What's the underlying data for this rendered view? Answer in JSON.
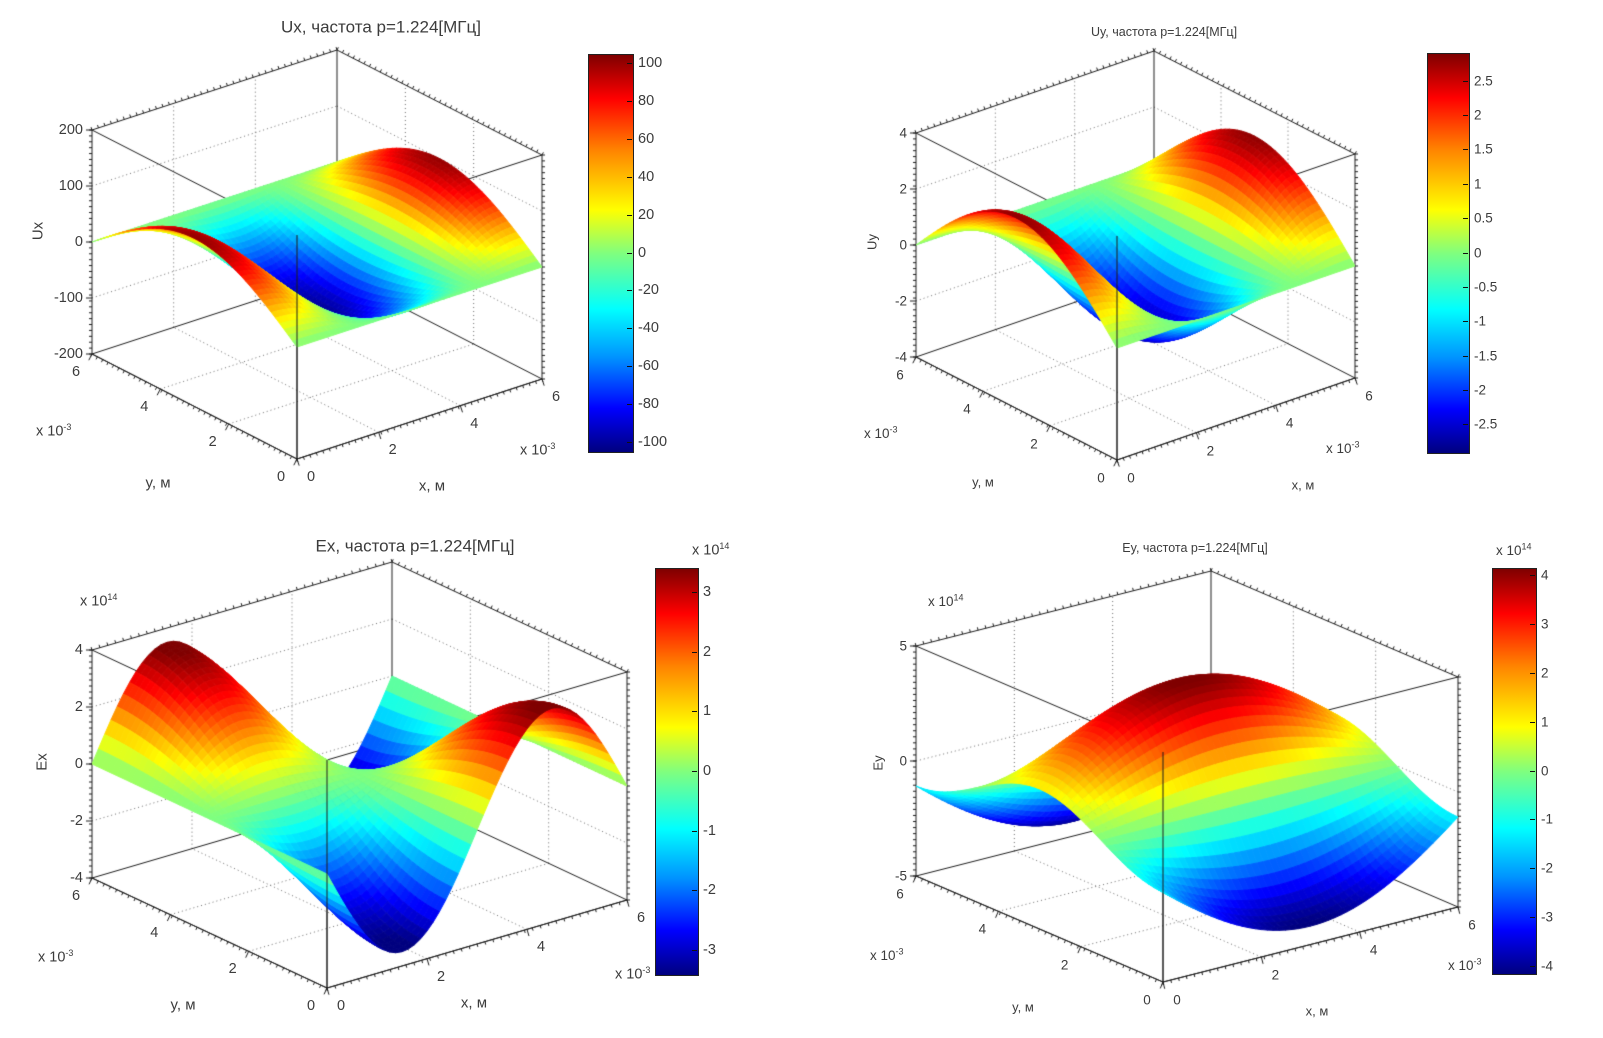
{
  "figure": {
    "background": "#ffffff",
    "colormap": "jet",
    "frequency_MHz": 1.224,
    "frequency_label": "p=1.224[МГц]"
  },
  "chart_data": [
    {
      "type": "surface",
      "id": "Ux",
      "title": "Ux, частота p=1.224[МГц]",
      "xlabel": "x, м",
      "ylabel": "y, м",
      "zlabel": "Ux",
      "axis_exponent_x": {
        "prefix": "x 10",
        "exp": "-3"
      },
      "axis_exponent_y": {
        "prefix": "x 10",
        "exp": "-3"
      },
      "axis_exponent_z": null,
      "x_range_mm": [
        0,
        6
      ],
      "y_range_mm": [
        0,
        6
      ],
      "xticks": [
        0,
        2,
        4,
        6
      ],
      "yticks": [
        6,
        4,
        2,
        0
      ],
      "zticks": [
        200,
        100,
        0,
        -100,
        -200
      ],
      "xtick_labels": [
        "0",
        "2",
        "4",
        "6"
      ],
      "ytick_labels": [
        "6",
        "4",
        "2",
        "0"
      ],
      "ztick_labels": [
        "200",
        "100",
        "0",
        "-100",
        "-200"
      ],
      "grid_x": [
        2,
        4
      ],
      "grid_y": [
        2,
        4
      ],
      "grid_z": [
        100,
        0,
        -100
      ],
      "zlim": [
        -200,
        200
      ],
      "clim": [
        -105,
        105
      ],
      "surface_model": {
        "formula": "Ux(x,y) = 100·cos(2πx/L)·sin(πy/L), L = 6 мм",
        "amplitude": 100,
        "sign": 1,
        "x_term": {
          "fn": "cos",
          "num": 2,
          "den": 6,
          "shift": 0
        },
        "y_term": {
          "fn": "sin",
          "num": 1,
          "den": 6,
          "shift": 0
        }
      },
      "sample_grid": {
        "units": "Ux",
        "x_mm": [
          0,
          1.5,
          3,
          4.5,
          6
        ],
        "y_mm": [
          0,
          1.5,
          3,
          4.5,
          6
        ],
        "values": [
          [
            0,
            0,
            0,
            0,
            0
          ],
          [
            70.7,
            0,
            -70.7,
            0,
            70.7
          ],
          [
            100,
            0,
            -100,
            0,
            100
          ],
          [
            70.7,
            0,
            -70.7,
            0,
            70.7
          ],
          [
            0,
            0,
            0,
            0,
            0
          ]
        ]
      },
      "colorbar": {
        "ticks": [
          "100",
          "80",
          "60",
          "40",
          "20",
          "0",
          "-20",
          "-40",
          "-60",
          "-80",
          "-100"
        ],
        "tick_values": [
          100,
          80,
          60,
          40,
          20,
          0,
          -20,
          -40,
          -60,
          -80,
          -100
        ],
        "range": [
          -105,
          105
        ],
        "exponent": null
      }
    },
    {
      "type": "surface",
      "id": "Uy",
      "title": "Uy, частота p=1.224[МГц]",
      "xlabel": "x, м",
      "ylabel": "y, м",
      "zlabel": "Uy",
      "axis_exponent_x": {
        "prefix": "x 10",
        "exp": "-3"
      },
      "axis_exponent_y": {
        "prefix": "x 10",
        "exp": "-3"
      },
      "axis_exponent_z": null,
      "x_range_mm": [
        0,
        6
      ],
      "y_range_mm": [
        0,
        6
      ],
      "xticks": [
        0,
        2,
        4,
        6
      ],
      "yticks": [
        6,
        4,
        2,
        0
      ],
      "zticks": [
        4,
        2,
        0,
        -2,
        -4
      ],
      "xtick_labels": [
        "0",
        "2",
        "4",
        "6"
      ],
      "ytick_labels": [
        "6",
        "4",
        "2",
        "0"
      ],
      "ztick_labels": [
        "4",
        "2",
        "0",
        "-2",
        "-4"
      ],
      "grid_x": [
        2,
        4
      ],
      "grid_y": [
        2,
        4
      ],
      "grid_z": [
        2,
        0,
        -2
      ],
      "zlim": [
        -4,
        4
      ],
      "clim": [
        -2.9,
        2.9
      ],
      "surface_model": {
        "formula": "Uy(x,y) = 2.8·cos(2πx/L)·sin(πy/L), L = 6 мм",
        "amplitude": 2.8,
        "sign": 1,
        "x_term": {
          "fn": "cos",
          "num": 2,
          "den": 6,
          "shift": 0
        },
        "y_term": {
          "fn": "sin",
          "num": 1,
          "den": 6,
          "shift": 0
        }
      },
      "sample_grid": {
        "units": "Uy",
        "x_mm": [
          0,
          1.5,
          3,
          4.5,
          6
        ],
        "y_mm": [
          0,
          1.5,
          3,
          4.5,
          6
        ],
        "values": [
          [
            0,
            0,
            0,
            0,
            0
          ],
          [
            1.98,
            0,
            -1.98,
            0,
            1.98
          ],
          [
            2.8,
            0,
            -2.8,
            0,
            2.8
          ],
          [
            1.98,
            0,
            -1.98,
            0,
            1.98
          ],
          [
            0,
            0,
            0,
            0,
            0
          ]
        ]
      },
      "colorbar": {
        "ticks": [
          "2.5",
          "2",
          "1.5",
          "1",
          "0.5",
          "0",
          "-0.5",
          "-1",
          "-1.5",
          "-2",
          "-2.5"
        ],
        "tick_values": [
          2.5,
          2,
          1.5,
          1,
          0.5,
          0,
          -0.5,
          -1,
          -1.5,
          -2,
          -2.5
        ],
        "range": [
          -2.9,
          2.9
        ],
        "exponent": null
      }
    },
    {
      "type": "surface",
      "id": "Ex",
      "title": "Ex, частота p=1.224[МГц]",
      "xlabel": "x, м",
      "ylabel": "y, м",
      "zlabel": "Ex",
      "axis_exponent_x": {
        "prefix": "x 10",
        "exp": "-3"
      },
      "axis_exponent_y": {
        "prefix": "x 10",
        "exp": "-3"
      },
      "axis_exponent_z": {
        "prefix": "x 10",
        "exp": "14"
      },
      "x_range_mm": [
        0,
        6
      ],
      "y_range_mm": [
        0,
        6
      ],
      "xticks": [
        0,
        2,
        4,
        6
      ],
      "yticks": [
        6,
        4,
        2,
        0
      ],
      "zticks": [
        4,
        2,
        0,
        -2,
        -4
      ],
      "xtick_labels": [
        "0",
        "2",
        "4",
        "6"
      ],
      "ytick_labels": [
        "6",
        "4",
        "2",
        "0"
      ],
      "ztick_labels": [
        "4",
        "2",
        "0",
        "-2",
        "-4"
      ],
      "grid_x": [
        2,
        4
      ],
      "grid_y": [
        2,
        4
      ],
      "grid_z": [
        2,
        0,
        -2
      ],
      "zlim": [
        -4,
        4
      ],
      "clim": [
        -3.4,
        3.4
      ],
      "z_units": "×10^14",
      "surface_model": {
        "formula": "Ex(x,y) = -3.5e14·sin(2πx/L)·cos(πy/L), L = 6 мм",
        "amplitude": 3.5,
        "sign": -1,
        "x_term": {
          "fn": "sin",
          "num": 2,
          "den": 6,
          "shift": 0
        },
        "y_term": {
          "fn": "cos",
          "num": 1,
          "den": 6,
          "shift": 0
        }
      },
      "sample_grid": {
        "units": "Ex ×10^14",
        "x_mm": [
          0,
          1.5,
          3,
          4.5,
          6
        ],
        "y_mm": [
          0,
          1.5,
          3,
          4.5,
          6
        ],
        "values": [
          [
            0,
            -3.5,
            0,
            3.5,
            0
          ],
          [
            0,
            -2.47,
            0,
            2.47,
            0
          ],
          [
            0,
            0,
            0,
            0,
            0
          ],
          [
            0,
            2.47,
            0,
            -2.47,
            0
          ],
          [
            0,
            3.5,
            0,
            -3.5,
            0
          ]
        ]
      },
      "colorbar": {
        "ticks": [
          "3",
          "2",
          "1",
          "0",
          "-1",
          "-2",
          "-3"
        ],
        "tick_values": [
          3,
          2,
          1,
          0,
          -1,
          -2,
          -3
        ],
        "range": [
          -3.4,
          3.4
        ],
        "exponent": {
          "prefix": "x 10",
          "exp": "14"
        }
      }
    },
    {
      "type": "surface",
      "id": "Ey",
      "title": "Ey, частота p=1.224[МГц]",
      "xlabel": "x, м",
      "ylabel": "y, м",
      "zlabel": "Ey",
      "axis_exponent_x": {
        "prefix": "x 10",
        "exp": "-3"
      },
      "axis_exponent_y": {
        "prefix": "x 10",
        "exp": "-3"
      },
      "axis_exponent_z": {
        "prefix": "x 10",
        "exp": "14"
      },
      "x_range_mm": [
        0,
        6
      ],
      "y_range_mm": [
        0,
        6
      ],
      "xticks": [
        0,
        2,
        4,
        6
      ],
      "yticks": [
        6,
        4,
        2,
        0
      ],
      "zticks": [
        5,
        0,
        -5
      ],
      "xtick_labels": [
        "0",
        "2",
        "4",
        "6"
      ],
      "ytick_labels": [
        "6",
        "4",
        "2",
        "0"
      ],
      "ztick_labels": [
        "5",
        "0",
        "-5"
      ],
      "grid_x": [
        2,
        4
      ],
      "grid_y": [
        2,
        4
      ],
      "grid_z": [
        0
      ],
      "zlim": [
        -5,
        5
      ],
      "clim": [
        -4.15,
        4.15
      ],
      "z_units": "×10^14",
      "surface_model": {
        "formula": "Ey(x,y) = -4.2e14·sin(π(x+0.6)/7.2)·cos(2πy/L), L = 6 мм",
        "amplitude": 4.2,
        "sign": -1,
        "x_term": {
          "fn": "sin",
          "num": 1,
          "den": 7.2,
          "shift": 0.6
        },
        "y_term": {
          "fn": "cos",
          "num": 2,
          "den": 6,
          "shift": 0
        }
      },
      "sample_grid": {
        "units": "Ey ×10^14",
        "x_mm": [
          0,
          1.5,
          3,
          4.5,
          6
        ],
        "y_mm": [
          0,
          1.5,
          3,
          4.5,
          6
        ],
        "values": [
          [
            -1.09,
            -3.32,
            -4.2,
            -3.32,
            -1.09
          ],
          [
            0,
            0,
            0,
            0,
            0
          ],
          [
            1.09,
            3.32,
            4.2,
            3.32,
            1.09
          ],
          [
            0,
            0,
            0,
            0,
            0
          ],
          [
            -1.09,
            -3.32,
            -4.2,
            -3.32,
            -1.09
          ]
        ]
      },
      "colorbar": {
        "ticks": [
          "4",
          "3",
          "2",
          "1",
          "0",
          "-1",
          "-2",
          "-3",
          "-4"
        ],
        "tick_values": [
          4,
          3,
          2,
          1,
          0,
          -1,
          -2,
          -3,
          -4
        ],
        "range": [
          -4.15,
          4.15
        ],
        "exponent": {
          "prefix": "x 10",
          "exp": "14"
        }
      }
    }
  ]
}
